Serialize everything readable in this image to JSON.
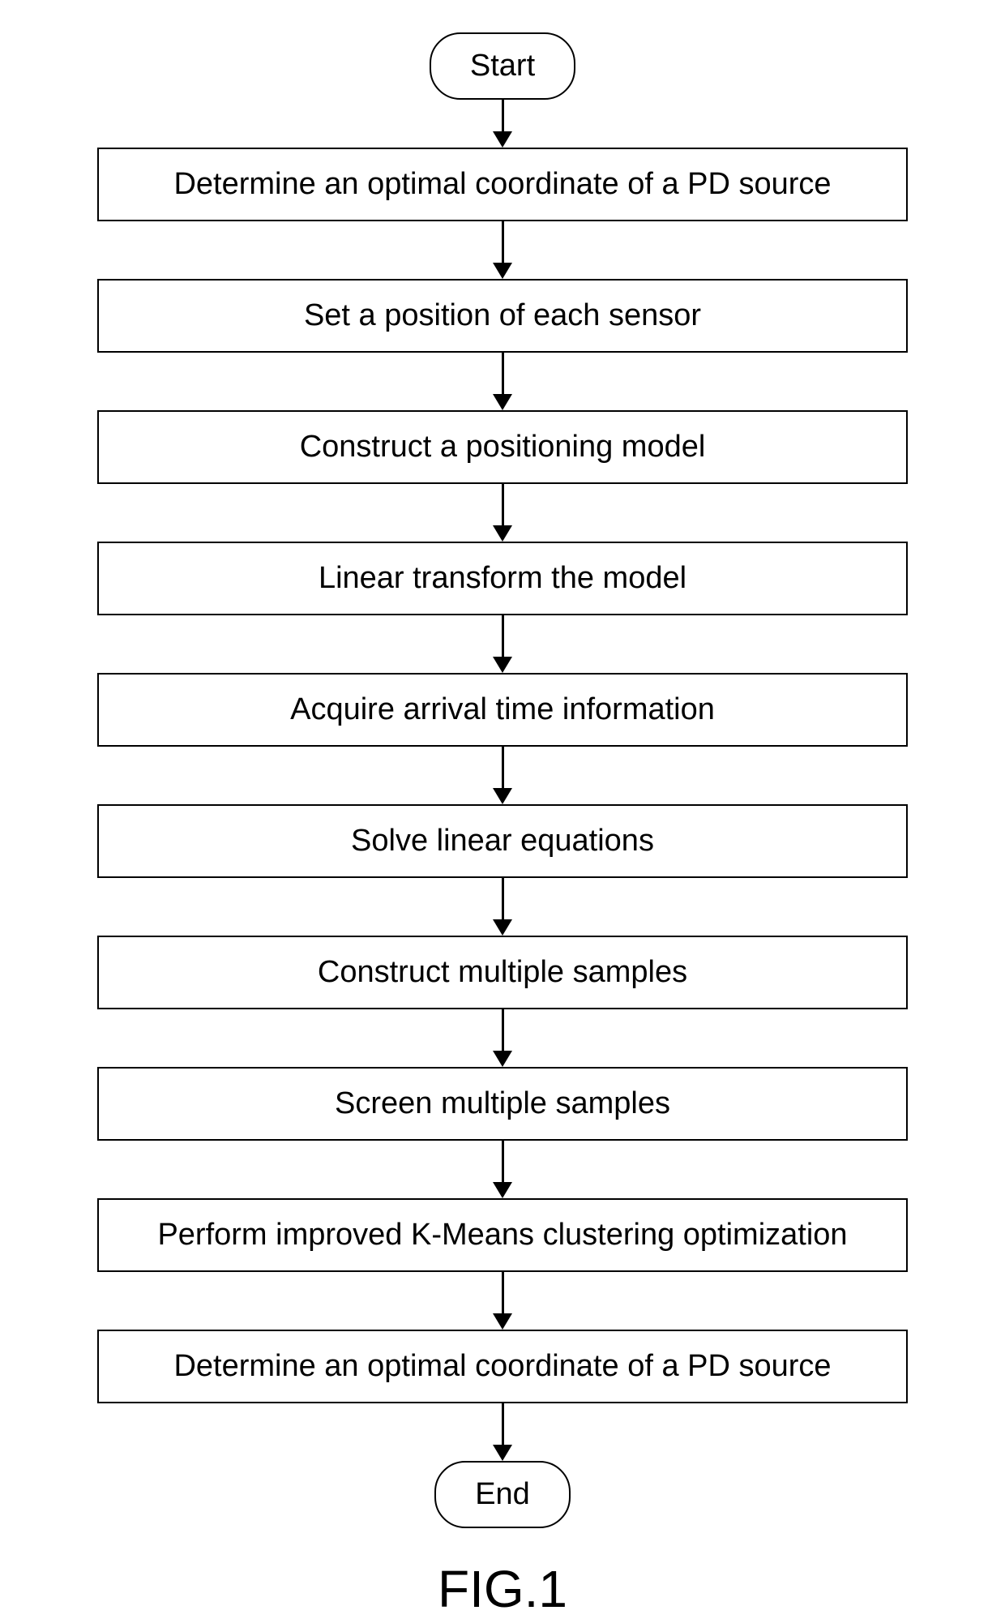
{
  "flowchart": {
    "type": "flowchart",
    "background_color": "#ffffff",
    "border_color": "#000000",
    "border_width": 2.5,
    "text_color": "#000000",
    "node_font_size": 38,
    "caption_font_size": 64,
    "terminator_radius": 38,
    "process_width": 1000,
    "arrow_line_width": 3,
    "arrow_head_width": 24,
    "arrow_head_height": 20,
    "arrow_short_length": 40,
    "arrow_long_length": 52,
    "nodes": [
      {
        "id": "start",
        "shape": "terminator",
        "label": "Start"
      },
      {
        "id": "n1",
        "shape": "process",
        "label": "Determine an optimal coordinate of a PD source"
      },
      {
        "id": "n2",
        "shape": "process",
        "label": "Set a position of each sensor"
      },
      {
        "id": "n3",
        "shape": "process",
        "label": "Construct a positioning model"
      },
      {
        "id": "n4",
        "shape": "process",
        "label": "Linear transform the model"
      },
      {
        "id": "n5",
        "shape": "process",
        "label": "Acquire arrival time information"
      },
      {
        "id": "n6",
        "shape": "process",
        "label": "Solve linear equations"
      },
      {
        "id": "n7",
        "shape": "process",
        "label": "Construct multiple samples"
      },
      {
        "id": "n8",
        "shape": "process",
        "label": "Screen multiple samples"
      },
      {
        "id": "n9",
        "shape": "process",
        "label": "Perform improved K-Means clustering optimization"
      },
      {
        "id": "n10",
        "shape": "process",
        "label": "Determine an optimal coordinate of a PD source"
      },
      {
        "id": "end",
        "shape": "terminator",
        "label": "End"
      }
    ],
    "edges": [
      {
        "from": "start",
        "to": "n1",
        "length": "short"
      },
      {
        "from": "n1",
        "to": "n2",
        "length": "long"
      },
      {
        "from": "n2",
        "to": "n3",
        "length": "long"
      },
      {
        "from": "n3",
        "to": "n4",
        "length": "long"
      },
      {
        "from": "n4",
        "to": "n5",
        "length": "long"
      },
      {
        "from": "n5",
        "to": "n6",
        "length": "long"
      },
      {
        "from": "n6",
        "to": "n7",
        "length": "long"
      },
      {
        "from": "n7",
        "to": "n8",
        "length": "long"
      },
      {
        "from": "n8",
        "to": "n9",
        "length": "long"
      },
      {
        "from": "n9",
        "to": "n10",
        "length": "long"
      },
      {
        "from": "n10",
        "to": "end",
        "length": "long"
      }
    ],
    "caption": "FIG.1"
  }
}
